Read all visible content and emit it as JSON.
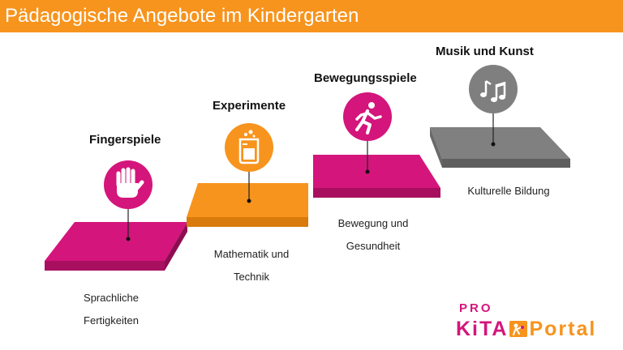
{
  "title": "Pädagogische Angebote im Kindergarten",
  "colors": {
    "header": "#f7941d",
    "magenta": "#d4157c",
    "orange": "#f7941d",
    "gray": "#7f7f7f"
  },
  "steps": [
    {
      "heading": "Fingerspiele",
      "caption_line1": "Sprachliche",
      "caption_line2": "Fertigkeiten",
      "icon": "hand-icon",
      "color": "#d4157c"
    },
    {
      "heading": "Experimente",
      "caption_line1": "Mathematik und",
      "caption_line2": "Technik",
      "icon": "beaker-icon",
      "color": "#f7941d"
    },
    {
      "heading": "Bewegungsspiele",
      "caption_line1": "Bewegung und",
      "caption_line2": "Gesundheit",
      "icon": "running-person-icon",
      "color": "#d4157c"
    },
    {
      "heading": "Musik und Kunst",
      "caption_line1": "Kulturelle Bildung",
      "caption_line2": "",
      "icon": "music-notes-icon",
      "color": "#7f7f7f"
    }
  ],
  "logo": {
    "pro": "PRO",
    "kita": "KiTA",
    "portal": "Portal",
    "pro_color": "#d4157c",
    "kita_color": "#d4157c",
    "portal_color": "#f7941d"
  }
}
